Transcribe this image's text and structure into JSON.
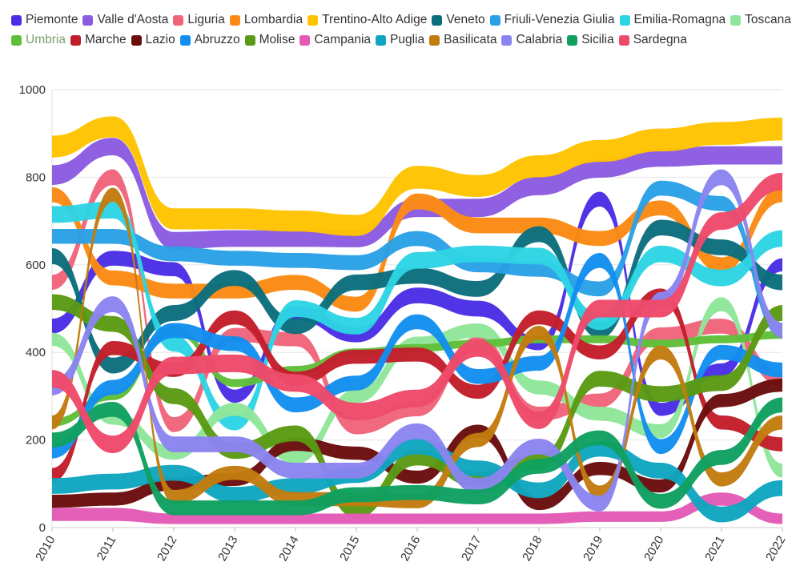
{
  "chart_data": {
    "type": "area",
    "style": "stream-ribbons",
    "legend_position": "top-left",
    "ylim": [
      0,
      1000
    ],
    "y_ticks": [
      "0",
      "200",
      "400",
      "600",
      "800",
      "1000"
    ],
    "x": [
      "2010",
      "2011",
      "2012",
      "2013",
      "2014",
      "2015",
      "2016",
      "2017",
      "2018",
      "2019",
      "2020",
      "2021",
      "2022"
    ],
    "series": [
      {
        "name": "Piemonte",
        "color": "#4a2ee6",
        "center": [
          460,
          615,
          590,
          300,
          490,
          440,
          530,
          500,
          420,
          750,
          270,
          360,
          600
        ],
        "width": [
          34,
          34,
          32,
          30,
          32,
          34,
          36,
          36,
          30,
          34,
          30,
          30,
          30
        ]
      },
      {
        "name": "Valle d'Aosta",
        "color": "#8b5be0",
        "center": [
          805,
          870,
          655,
          660,
          660,
          660,
          730,
          730,
          780,
          820,
          845,
          850,
          850
        ],
        "width": [
          45,
          40,
          40,
          38,
          38,
          40,
          42,
          42,
          42,
          42,
          42,
          42,
          42
        ]
      },
      {
        "name": "Liguria",
        "color": "#f0647a",
        "center": [
          560,
          800,
          235,
          440,
          430,
          230,
          270,
          420,
          260,
          290,
          440,
          460,
          340
        ],
        "width": [
          34,
          36,
          34,
          32,
          32,
          34,
          32,
          32,
          32,
          32,
          34,
          34,
          34
        ]
      },
      {
        "name": "Lombardia",
        "color": "#fb8a14",
        "center": [
          760,
          570,
          540,
          540,
          560,
          510,
          745,
          690,
          690,
          660,
          730,
          600,
          760
        ],
        "width": [
          34,
          34,
          34,
          34,
          34,
          34,
          36,
          36,
          36,
          34,
          34,
          34,
          34
        ]
      },
      {
        "name": "Trentino-Alto Adige",
        "color": "#ffc300",
        "center": [
          870,
          915,
          705,
          705,
          700,
          690,
          800,
          780,
          825,
          860,
          885,
          900,
          910
        ],
        "width": [
          50,
          48,
          48,
          48,
          48,
          48,
          52,
          50,
          50,
          50,
          52,
          52,
          52
        ]
      },
      {
        "name": "Veneto",
        "color": "#0b6e7c",
        "center": [
          620,
          370,
          490,
          570,
          460,
          560,
          575,
          545,
          670,
          450,
          685,
          640,
          560
        ],
        "width": [
          36,
          36,
          36,
          36,
          36,
          36,
          36,
          36,
          36,
          36,
          36,
          36,
          36
        ]
      },
      {
        "name": "Friuli-Venezia Giulia",
        "color": "#2aa0e6",
        "center": [
          665,
          665,
          625,
          615,
          610,
          605,
          660,
          600,
          590,
          545,
          775,
          740,
          450
        ],
        "width": [
          34,
          34,
          34,
          34,
          34,
          34,
          34,
          34,
          34,
          34,
          34,
          34,
          34
        ]
      },
      {
        "name": "Emilia-Romagna",
        "color": "#2dd4e3",
        "center": [
          715,
          725,
          420,
          240,
          500,
          460,
          610,
          625,
          620,
          470,
          625,
          570,
          660
        ],
        "width": [
          38,
          38,
          36,
          36,
          38,
          38,
          38,
          38,
          38,
          38,
          38,
          38,
          38
        ]
      },
      {
        "name": "Toscana",
        "color": "#8ee69a",
        "center": [
          430,
          250,
          170,
          270,
          160,
          300,
          420,
          450,
          320,
          260,
          220,
          510,
          130
        ],
        "width": [
          30,
          30,
          30,
          30,
          30,
          30,
          32,
          32,
          32,
          32,
          32,
          32,
          32
        ]
      },
      {
        "name": "Umbria",
        "color": "#5fbf3a",
        "center": [
          240,
          300,
          450,
          330,
          360,
          400,
          410,
          420,
          430,
          430,
          420,
          430,
          440
        ],
        "width": [
          18,
          18,
          18,
          18,
          18,
          18,
          18,
          18,
          18,
          18,
          18,
          18,
          18
        ]
      },
      {
        "name": "Marche",
        "color": "#c21e2a",
        "center": [
          120,
          410,
          360,
          480,
          340,
          390,
          395,
          310,
          480,
          400,
          530,
          240,
          190
        ],
        "width": [
          32,
          32,
          32,
          32,
          32,
          32,
          32,
          32,
          32,
          32,
          32,
          32,
          32
        ]
      },
      {
        "name": "Lazio",
        "color": "#6b0d0d",
        "center": [
          60,
          65,
          100,
          110,
          190,
          170,
          115,
          220,
          55,
          135,
          95,
          290,
          325
        ],
        "width": [
          30,
          30,
          30,
          30,
          30,
          30,
          30,
          30,
          30,
          30,
          30,
          30,
          30
        ]
      },
      {
        "name": "Abruzzo",
        "color": "#128ef0",
        "center": [
          175,
          320,
          450,
          420,
          280,
          330,
          470,
          345,
          375,
          610,
          185,
          400,
          360
        ],
        "width": [
          34,
          34,
          34,
          34,
          34,
          34,
          34,
          34,
          34,
          34,
          34,
          34,
          34
        ]
      },
      {
        "name": "Molise",
        "color": "#5a9a14",
        "center": [
          515,
          465,
          300,
          175,
          215,
          40,
          160,
          110,
          150,
          340,
          305,
          330,
          490
        ],
        "width": [
          36,
          36,
          36,
          36,
          36,
          36,
          36,
          36,
          36,
          36,
          36,
          36,
          36
        ]
      },
      {
        "name": "Campania",
        "color": "#e35ab5",
        "center": [
          30,
          30,
          20,
          20,
          20,
          20,
          20,
          20,
          20,
          25,
          25,
          65,
          20
        ],
        "width": [
          30,
          30,
          24,
          24,
          24,
          24,
          24,
          24,
          24,
          24,
          24,
          30,
          24
        ]
      },
      {
        "name": "Puglia",
        "color": "#10a5c0",
        "center": [
          95,
          105,
          125,
          75,
          95,
          120,
          185,
          135,
          85,
          180,
          130,
          30,
          90
        ],
        "width": [
          36,
          36,
          36,
          36,
          36,
          36,
          36,
          36,
          36,
          36,
          36,
          36,
          36
        ]
      },
      {
        "name": "Basilicata",
        "color": "#c27c0e",
        "center": [
          240,
          760,
          70,
          125,
          65,
          65,
          60,
          200,
          445,
          80,
          400,
          110,
          240
        ],
        "width": [
          32,
          32,
          32,
          32,
          32,
          32,
          32,
          32,
          32,
          32,
          32,
          32,
          32
        ]
      },
      {
        "name": "Calabria",
        "color": "#8a84f0",
        "center": [
          320,
          510,
          190,
          190,
          130,
          130,
          220,
          95,
          185,
          55,
          520,
          800,
          450
        ],
        "width": [
          36,
          36,
          36,
          36,
          36,
          36,
          36,
          36,
          36,
          36,
          36,
          36,
          36
        ]
      },
      {
        "name": "Sicilia",
        "color": "#10a060",
        "center": [
          200,
          270,
          45,
          45,
          45,
          75,
          80,
          70,
          140,
          205,
          60,
          160,
          280
        ],
        "width": [
          34,
          34,
          34,
          34,
          34,
          34,
          34,
          34,
          34,
          34,
          34,
          34,
          34
        ]
      },
      {
        "name": "Sardegna",
        "color": "#ee4a6a",
        "center": [
          340,
          190,
          370,
          375,
          330,
          265,
          295,
          410,
          245,
          500,
          500,
          700,
          790
        ],
        "width": [
          40,
          40,
          40,
          40,
          40,
          40,
          40,
          40,
          40,
          40,
          40,
          40,
          40
        ]
      }
    ]
  }
}
